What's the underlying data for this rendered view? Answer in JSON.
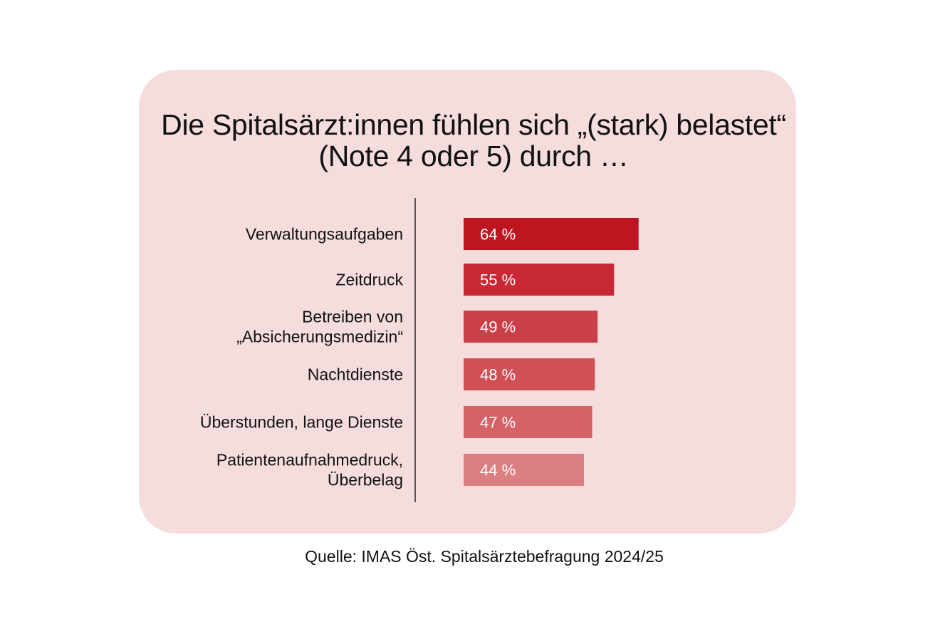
{
  "colors": {
    "card_background": "#f5dcdd",
    "axis_line": "#555555",
    "value_text": "#ffffff",
    "bars": [
      "#be1620",
      "#c72834",
      "#c94048",
      "#cf5156",
      "#d46266",
      "#dc7f80"
    ]
  },
  "chart_data": {
    "type": "bar",
    "orientation": "horizontal",
    "title": [
      "Die Spitalsärzt:innen fühlen sich „(stark) belastet“",
      "(Note 4 oder 5) durch …"
    ],
    "categories": [
      [
        "Verwaltungsaufgaben"
      ],
      [
        "Zeitdruck"
      ],
      [
        "Betreiben von",
        "„Absicherungsmedizin“"
      ],
      [
        "Nachtdienste"
      ],
      [
        "Überstunden, lange Dienste"
      ],
      [
        "Patientenaufnahmedruck,",
        "Überbelag"
      ]
    ],
    "values": [
      64,
      55,
      49,
      48,
      47,
      44
    ],
    "value_labels": [
      "64 %",
      "55 %",
      "49 %",
      "48 %",
      "47 %",
      "44 %"
    ],
    "unit": "%",
    "grid": false,
    "legend": "none"
  },
  "source": "Quelle: IMAS Öst. Spitalsärztebefragung 2024/25"
}
